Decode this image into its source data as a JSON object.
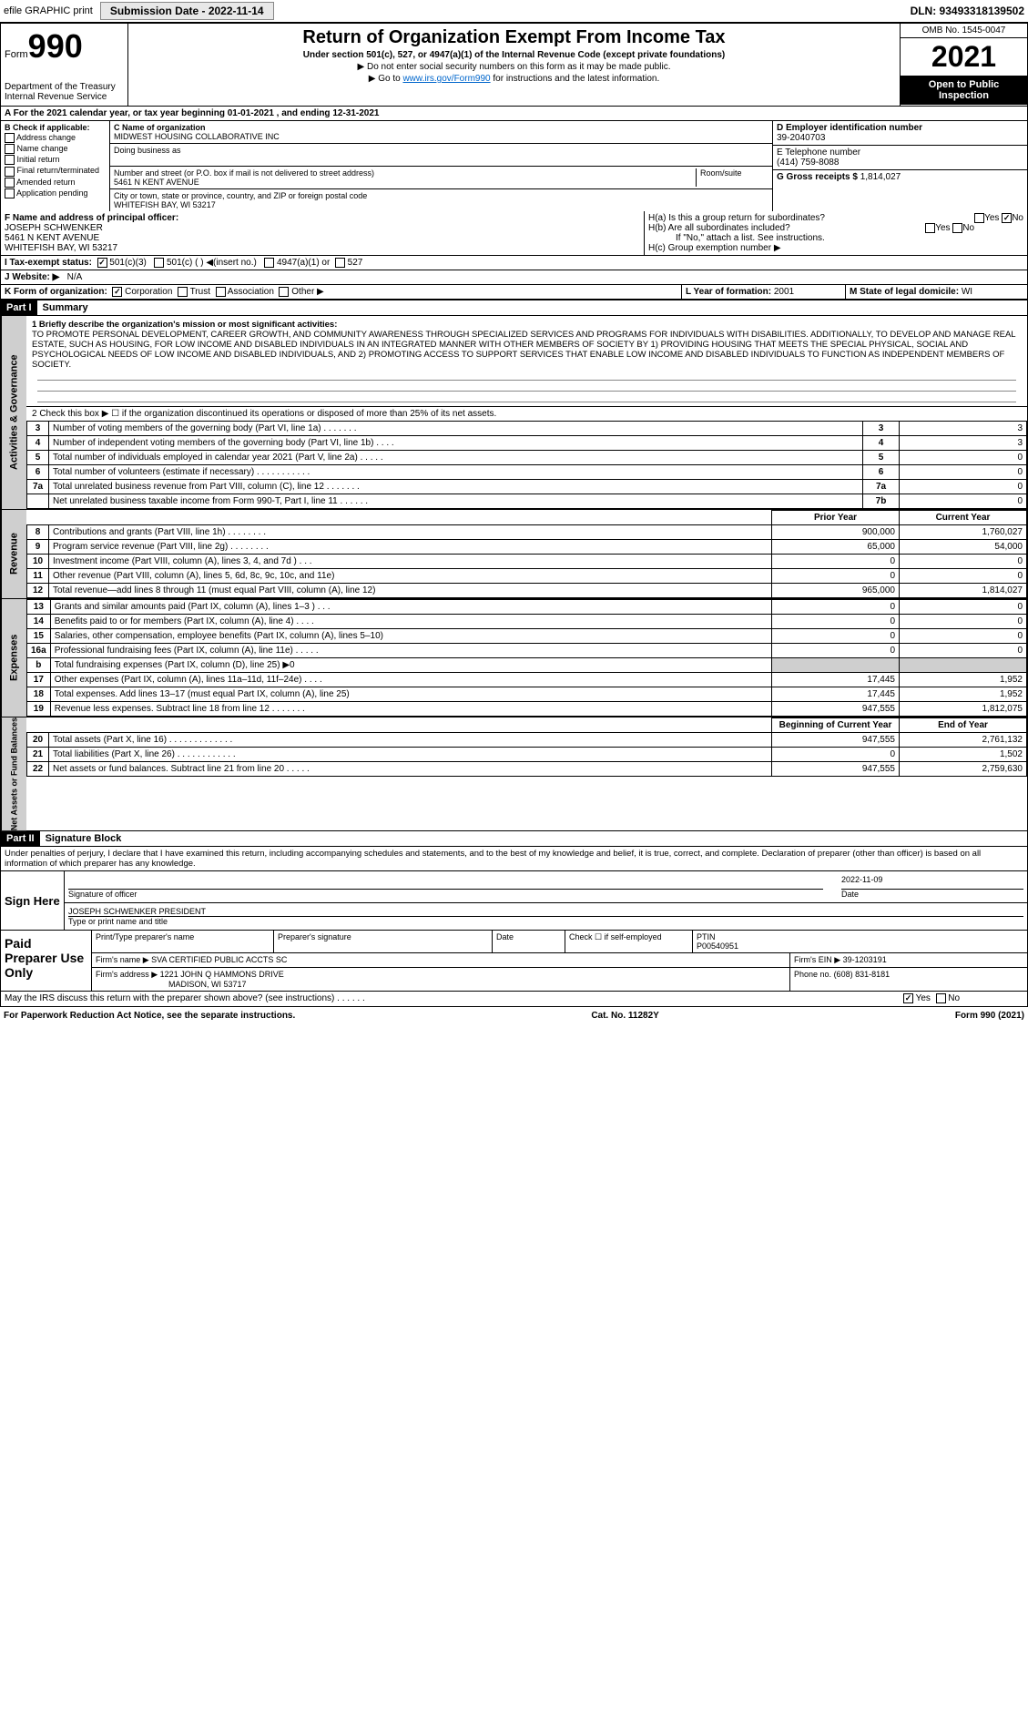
{
  "topbar": {
    "efile": "efile GRAPHIC print",
    "subdate_label": "Submission Date - 2022-11-14",
    "dln": "DLN: 93493318139502"
  },
  "header": {
    "form_word": "Form",
    "form_num": "990",
    "dept": "Department of the Treasury Internal Revenue Service",
    "title": "Return of Organization Exempt From Income Tax",
    "sub1": "Under section 501(c), 527, or 4947(a)(1) of the Internal Revenue Code (except private foundations)",
    "sub2": "▶ Do not enter social security numbers on this form as it may be made public.",
    "sub3_prefix": "▶ Go to ",
    "sub3_link": "www.irs.gov/Form990",
    "sub3_suffix": " for instructions and the latest information.",
    "omb": "OMB No. 1545-0047",
    "year": "2021",
    "inspect": "Open to Public Inspection"
  },
  "lineA": {
    "text": "A For the 2021 calendar year, or tax year beginning 01-01-2021    , and ending 12-31-2021"
  },
  "B": {
    "hdr": "B Check if applicable:",
    "items": [
      "Address change",
      "Name change",
      "Initial return",
      "Final return/terminated",
      "Amended return",
      "Application pending"
    ]
  },
  "C": {
    "name_lbl": "C Name of organization",
    "name": "MIDWEST HOUSING COLLABORATIVE INC",
    "dba_lbl": "Doing business as",
    "dba": "",
    "street_lbl": "Number and street (or P.O. box if mail is not delivered to street address)",
    "street": "5461 N KENT AVENUE",
    "room_lbl": "Room/suite",
    "city_lbl": "City or town, state or province, country, and ZIP or foreign postal code",
    "city": "WHITEFISH BAY, WI  53217"
  },
  "D": {
    "lbl": "D Employer identification number",
    "val": "39-2040703"
  },
  "E": {
    "lbl": "E Telephone number",
    "val": "(414) 759-8088"
  },
  "G": {
    "lbl": "G Gross receipts $",
    "val": "1,814,027"
  },
  "F": {
    "lbl": "F  Name and address of principal officer:",
    "name": "JOSEPH SCHWENKER",
    "addr1": "5461 N KENT AVENUE",
    "addr2": "WHITEFISH BAY, WI  53217"
  },
  "H": {
    "a_lbl": "H(a)  Is this a group return for subordinates?",
    "a_yes": "Yes",
    "a_no": "No",
    "b_lbl": "H(b)  Are all subordinates included?",
    "b_yes": "Yes",
    "b_no": "No",
    "b_note": "If \"No,\" attach a list. See instructions.",
    "c_lbl": "H(c)  Group exemption number ▶"
  },
  "I": {
    "lbl": "I  Tax-exempt status:",
    "opt1": "501(c)(3)",
    "opt2": "501(c) (  ) ◀(insert no.)",
    "opt3": "4947(a)(1) or",
    "opt4": "527"
  },
  "J": {
    "lbl": "J  Website: ▶",
    "val": "N/A"
  },
  "K": {
    "lbl": "K Form of organization:",
    "opts": [
      "Corporation",
      "Trust",
      "Association",
      "Other ▶"
    ]
  },
  "L": {
    "lbl": "L Year of formation:",
    "val": "2001"
  },
  "M": {
    "lbl": "M State of legal domicile:",
    "val": "WI"
  },
  "part1": {
    "hdr": "Part I",
    "title": "Summary",
    "mission_lbl": "1  Briefly describe the organization's mission or most significant activities:",
    "mission": "TO PROMOTE PERSONAL DEVELOPMENT, CAREER GROWTH, AND COMMUNITY AWARENESS THROUGH SPECIALIZED SERVICES AND PROGRAMS FOR INDIVIDUALS WITH DISABILITIES. ADDITIONALLY, TO DEVELOP AND MANAGE REAL ESTATE, SUCH AS HOUSING, FOR LOW INCOME AND DISABLED INDIVIDUALS IN AN INTEGRATED MANNER WITH OTHER MEMBERS OF SOCIETY BY 1) PROVIDING HOUSING THAT MEETS THE SPECIAL PHYSICAL, SOCIAL AND PSYCHOLOGICAL NEEDS OF LOW INCOME AND DISABLED INDIVIDUALS, AND 2) PROMOTING ACCESS TO SUPPORT SERVICES THAT ENABLE LOW INCOME AND DISABLED INDIVIDUALS TO FUNCTION AS INDEPENDENT MEMBERS OF SOCIETY.",
    "line2": "2  Check this box ▶ ☐  if the organization discontinued its operations or disposed of more than 25% of its net assets.",
    "rows_ag": [
      {
        "n": "3",
        "d": "Number of voting members of the governing body (Part VI, line 1a)   .    .    .    .    .    .    .",
        "b": "3",
        "v": "3"
      },
      {
        "n": "4",
        "d": "Number of independent voting members of the governing body (Part VI, line 1b)  .    .    .    .",
        "b": "4",
        "v": "3"
      },
      {
        "n": "5",
        "d": "Total number of individuals employed in calendar year 2021 (Part V, line 2a)   .    .    .    .    .",
        "b": "5",
        "v": "0"
      },
      {
        "n": "6",
        "d": "Total number of volunteers (estimate if necessary)   .    .    .    .    .    .    .    .    .    .    .",
        "b": "6",
        "v": "0"
      },
      {
        "n": "7a",
        "d": "Total unrelated business revenue from Part VIII, column (C), line 12   .    .    .    .    .    .    .",
        "b": "7a",
        "v": "0"
      },
      {
        "n": "",
        "d": "Net unrelated business taxable income from Form 990-T, Part I, line 11   .    .    .    .    .    .",
        "b": "7b",
        "v": "0"
      }
    ],
    "col_prior": "Prior Year",
    "col_current": "Current Year",
    "rows_rev": [
      {
        "n": "8",
        "d": "Contributions and grants (Part VIII, line 1h)   .    .    .    .    .    .    .    .",
        "p": "900,000",
        "c": "1,760,027"
      },
      {
        "n": "9",
        "d": "Program service revenue (Part VIII, line 2g)   .    .    .    .    .    .    .    .",
        "p": "65,000",
        "c": "54,000"
      },
      {
        "n": "10",
        "d": "Investment income (Part VIII, column (A), lines 3, 4, and 7d )    .    .    .",
        "p": "0",
        "c": "0"
      },
      {
        "n": "11",
        "d": "Other revenue (Part VIII, column (A), lines 5, 6d, 8c, 9c, 10c, and 11e)",
        "p": "0",
        "c": "0"
      },
      {
        "n": "12",
        "d": "Total revenue—add lines 8 through 11 (must equal Part VIII, column (A), line 12)",
        "p": "965,000",
        "c": "1,814,027"
      }
    ],
    "rows_exp": [
      {
        "n": "13",
        "d": "Grants and similar amounts paid (Part IX, column (A), lines 1–3 )    .    .    .",
        "p": "0",
        "c": "0"
      },
      {
        "n": "14",
        "d": "Benefits paid to or for members (Part IX, column (A), line 4)   .    .    .    .",
        "p": "0",
        "c": "0"
      },
      {
        "n": "15",
        "d": "Salaries, other compensation, employee benefits (Part IX, column (A), lines 5–10)",
        "p": "0",
        "c": "0"
      },
      {
        "n": "16a",
        "d": "Professional fundraising fees (Part IX, column (A), line 11e)   .    .    .    .    .",
        "p": "0",
        "c": "0"
      },
      {
        "n": "b",
        "d": "Total fundraising expenses (Part IX, column (D), line 25) ▶0",
        "p": "",
        "c": "",
        "shade": true
      },
      {
        "n": "17",
        "d": "Other expenses (Part IX, column (A), lines 11a–11d, 11f–24e)   .    .    .    .",
        "p": "17,445",
        "c": "1,952"
      },
      {
        "n": "18",
        "d": "Total expenses. Add lines 13–17 (must equal Part IX, column (A), line 25)",
        "p": "17,445",
        "c": "1,952"
      },
      {
        "n": "19",
        "d": "Revenue less expenses. Subtract line 18 from line 12   .    .    .    .    .    .    .",
        "p": "947,555",
        "c": "1,812,075"
      }
    ],
    "col_begin": "Beginning of Current Year",
    "col_end": "End of Year",
    "rows_na": [
      {
        "n": "20",
        "d": "Total assets (Part X, line 16)   .    .    .    .    .    .    .    .    .    .    .    .    .",
        "p": "947,555",
        "c": "2,761,132"
      },
      {
        "n": "21",
        "d": "Total liabilities (Part X, line 26)   .    .    .    .    .    .    .    .    .    .    .    .",
        "p": "0",
        "c": "1,502"
      },
      {
        "n": "22",
        "d": "Net assets or fund balances. Subtract line 21 from line 20   .    .    .    .    .",
        "p": "947,555",
        "c": "2,759,630"
      }
    ],
    "tab_ag": "Activities & Governance",
    "tab_rev": "Revenue",
    "tab_exp": "Expenses",
    "tab_na": "Net Assets or Fund Balances"
  },
  "part2": {
    "hdr": "Part II",
    "title": "Signature Block",
    "penalty": "Under penalties of perjury, I declare that I have examined this return, including accompanying schedules and statements, and to the best of my knowledge and belief, it is true, correct, and complete. Declaration of preparer (other than officer) is based on all information of which preparer has any knowledge."
  },
  "sign": {
    "here": "Sign Here",
    "sig_lbl": "Signature of officer",
    "date_lbl": "Date",
    "date": "2022-11-09",
    "name": "JOSEPH SCHWENKER  PRESIDENT",
    "name_lbl": "Type or print name and title"
  },
  "paid": {
    "hdr": "Paid Preparer Use Only",
    "col1": "Print/Type preparer's name",
    "col2": "Preparer's signature",
    "col3": "Date",
    "col4_lbl": "Check ☐ if self-employed",
    "ptin_lbl": "PTIN",
    "ptin": "P00540951",
    "firm_name_lbl": "Firm's name    ▶",
    "firm_name": "SVA CERTIFIED PUBLIC ACCTS SC",
    "firm_ein_lbl": "Firm's EIN ▶",
    "firm_ein": "39-1203191",
    "firm_addr_lbl": "Firm's address ▶",
    "firm_addr1": "1221 JOHN Q HAMMONS DRIVE",
    "firm_addr2": "MADISON, WI  53717",
    "phone_lbl": "Phone no.",
    "phone": "(608) 831-8181"
  },
  "discuss": {
    "q": "May the IRS discuss this return with the preparer shown above? (see instructions)   .    .    .    .    .    .",
    "yes": "Yes",
    "no": "No"
  },
  "footer": {
    "left": "For Paperwork Reduction Act Notice, see the separate instructions.",
    "mid": "Cat. No. 11282Y",
    "right": "Form 990 (2021)"
  },
  "colors": {
    "link": "#0066cc",
    "shade": "#cfcfcf",
    "black": "#000000"
  }
}
